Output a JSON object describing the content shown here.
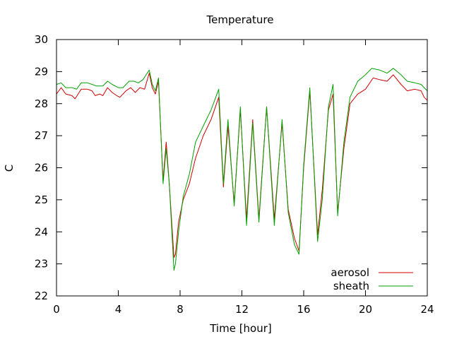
{
  "chart_data": {
    "type": "line",
    "title": "Temperature",
    "xlabel": "Time [hour]",
    "ylabel": "C",
    "xlim": [
      0,
      24
    ],
    "ylim": [
      22,
      30
    ],
    "xticks": [
      0,
      4,
      8,
      12,
      16,
      20,
      24
    ],
    "yticks": [
      22,
      23,
      24,
      25,
      26,
      27,
      28,
      29,
      30
    ],
    "grid": false,
    "legend_position": "bottom-right",
    "series": [
      {
        "name": "aerosol",
        "color": "#d00000",
        "points": [
          [
            0.0,
            28.3
          ],
          [
            0.3,
            28.5
          ],
          [
            0.6,
            28.3
          ],
          [
            1.0,
            28.25
          ],
          [
            1.2,
            28.15
          ],
          [
            1.6,
            28.45
          ],
          [
            2.0,
            28.45
          ],
          [
            2.3,
            28.4
          ],
          [
            2.5,
            28.25
          ],
          [
            2.8,
            28.3
          ],
          [
            3.0,
            28.25
          ],
          [
            3.3,
            28.5
          ],
          [
            3.6,
            28.35
          ],
          [
            3.9,
            28.25
          ],
          [
            4.1,
            28.2
          ],
          [
            4.5,
            28.4
          ],
          [
            4.8,
            28.5
          ],
          [
            5.1,
            28.35
          ],
          [
            5.4,
            28.5
          ],
          [
            5.7,
            28.45
          ],
          [
            6.0,
            28.95
          ],
          [
            6.2,
            28.5
          ],
          [
            6.4,
            28.3
          ],
          [
            6.6,
            28.7
          ],
          [
            6.9,
            25.6
          ],
          [
            7.1,
            26.8
          ],
          [
            7.3,
            25.5
          ],
          [
            7.6,
            23.2
          ],
          [
            7.7,
            23.3
          ],
          [
            7.9,
            24.3
          ],
          [
            8.2,
            25.0
          ],
          [
            8.6,
            25.5
          ],
          [
            9.0,
            26.3
          ],
          [
            9.5,
            27.0
          ],
          [
            10.0,
            27.5
          ],
          [
            10.5,
            28.2
          ],
          [
            10.8,
            25.4
          ],
          [
            11.1,
            27.3
          ],
          [
            11.5,
            24.9
          ],
          [
            11.9,
            27.8
          ],
          [
            12.3,
            24.4
          ],
          [
            12.7,
            27.5
          ],
          [
            13.1,
            24.4
          ],
          [
            13.6,
            27.9
          ],
          [
            14.1,
            24.4
          ],
          [
            14.6,
            27.4
          ],
          [
            15.0,
            24.7
          ],
          [
            15.4,
            23.8
          ],
          [
            15.7,
            23.4
          ],
          [
            16.0,
            26.0
          ],
          [
            16.4,
            28.4
          ],
          [
            16.9,
            23.9
          ],
          [
            17.2,
            25.3
          ],
          [
            17.6,
            27.8
          ],
          [
            17.9,
            28.3
          ],
          [
            18.2,
            24.6
          ],
          [
            18.6,
            26.6
          ],
          [
            19.0,
            28.0
          ],
          [
            19.5,
            28.3
          ],
          [
            20.0,
            28.45
          ],
          [
            20.5,
            28.8
          ],
          [
            20.9,
            28.75
          ],
          [
            21.4,
            28.7
          ],
          [
            21.8,
            28.9
          ],
          [
            22.3,
            28.6
          ],
          [
            22.7,
            28.4
          ],
          [
            23.2,
            28.45
          ],
          [
            23.6,
            28.4
          ],
          [
            23.8,
            28.2
          ],
          [
            24.0,
            28.1
          ]
        ]
      },
      {
        "name": "sheath",
        "color": "#00a000",
        "points": [
          [
            0.0,
            28.6
          ],
          [
            0.3,
            28.65
          ],
          [
            0.6,
            28.5
          ],
          [
            1.0,
            28.5
          ],
          [
            1.3,
            28.45
          ],
          [
            1.6,
            28.65
          ],
          [
            2.0,
            28.65
          ],
          [
            2.3,
            28.6
          ],
          [
            2.6,
            28.55
          ],
          [
            3.0,
            28.55
          ],
          [
            3.3,
            28.7
          ],
          [
            3.6,
            28.6
          ],
          [
            4.0,
            28.5
          ],
          [
            4.3,
            28.5
          ],
          [
            4.7,
            28.7
          ],
          [
            5.0,
            28.7
          ],
          [
            5.3,
            28.65
          ],
          [
            5.6,
            28.75
          ],
          [
            6.0,
            29.05
          ],
          [
            6.2,
            28.6
          ],
          [
            6.4,
            28.4
          ],
          [
            6.6,
            28.8
          ],
          [
            6.9,
            25.5
          ],
          [
            7.1,
            26.6
          ],
          [
            7.3,
            25.5
          ],
          [
            7.6,
            22.8
          ],
          [
            7.7,
            23.0
          ],
          [
            7.9,
            24.0
          ],
          [
            8.2,
            25.1
          ],
          [
            8.6,
            25.8
          ],
          [
            9.0,
            26.8
          ],
          [
            9.5,
            27.3
          ],
          [
            10.0,
            27.8
          ],
          [
            10.5,
            28.45
          ],
          [
            10.8,
            25.5
          ],
          [
            11.1,
            27.5
          ],
          [
            11.5,
            24.8
          ],
          [
            11.9,
            27.9
          ],
          [
            12.3,
            24.2
          ],
          [
            12.7,
            27.4
          ],
          [
            13.1,
            24.3
          ],
          [
            13.6,
            27.9
          ],
          [
            14.1,
            24.2
          ],
          [
            14.6,
            27.5
          ],
          [
            15.0,
            24.6
          ],
          [
            15.4,
            23.6
          ],
          [
            15.7,
            23.3
          ],
          [
            16.0,
            26.1
          ],
          [
            16.4,
            28.5
          ],
          [
            16.9,
            23.7
          ],
          [
            17.2,
            25.0
          ],
          [
            17.6,
            27.9
          ],
          [
            17.9,
            28.6
          ],
          [
            18.2,
            24.5
          ],
          [
            18.6,
            26.8
          ],
          [
            19.0,
            28.2
          ],
          [
            19.5,
            28.7
          ],
          [
            20.0,
            28.9
          ],
          [
            20.4,
            29.1
          ],
          [
            20.9,
            29.05
          ],
          [
            21.4,
            28.95
          ],
          [
            21.8,
            29.1
          ],
          [
            22.3,
            28.9
          ],
          [
            22.7,
            28.7
          ],
          [
            23.2,
            28.65
          ],
          [
            23.6,
            28.6
          ],
          [
            23.8,
            28.5
          ],
          [
            24.0,
            28.4
          ]
        ]
      }
    ]
  }
}
